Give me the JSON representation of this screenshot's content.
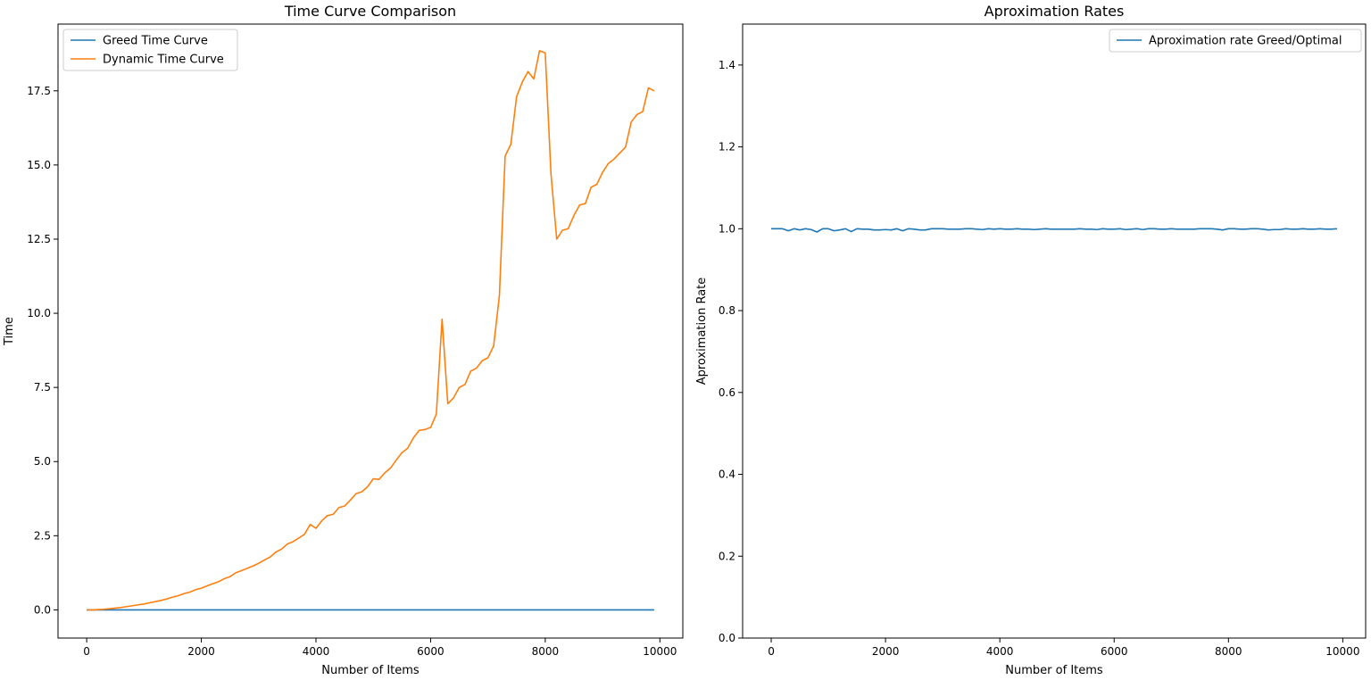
{
  "chart_data": [
    {
      "type": "line",
      "title": "Time Curve Comparison",
      "xlabel": "Number of Items",
      "ylabel": "Time",
      "xlim": [
        -500,
        10400
      ],
      "ylim": [
        -0.95,
        19.75
      ],
      "xticks": [
        0,
        2000,
        4000,
        6000,
        8000,
        10000
      ],
      "xtick_labels": [
        "0",
        "2000",
        "4000",
        "6000",
        "8000",
        "10000"
      ],
      "yticks": [
        0,
        2.5,
        5,
        7.5,
        10,
        12.5,
        15,
        17.5
      ],
      "ytick_labels": [
        "0.0",
        "2.5",
        "5.0",
        "7.5",
        "10.0",
        "12.5",
        "15.0",
        "17.5"
      ],
      "grid": false,
      "legend_position": "top-left",
      "x": [
        0,
        100,
        200,
        300,
        400,
        500,
        600,
        700,
        800,
        900,
        1000,
        1100,
        1200,
        1300,
        1400,
        1500,
        1600,
        1700,
        1800,
        1900,
        2000,
        2100,
        2200,
        2300,
        2400,
        2500,
        2600,
        2700,
        2800,
        2900,
        3000,
        3100,
        3200,
        3300,
        3400,
        3500,
        3600,
        3700,
        3800,
        3900,
        4000,
        4100,
        4200,
        4300,
        4400,
        4500,
        4600,
        4700,
        4800,
        4900,
        5000,
        5100,
        5200,
        5300,
        5400,
        5500,
        5600,
        5700,
        5800,
        5900,
        6000,
        6100,
        6200,
        6300,
        6400,
        6500,
        6600,
        6700,
        6800,
        6900,
        7000,
        7100,
        7200,
        7300,
        7400,
        7500,
        7600,
        7700,
        7800,
        7900,
        8000,
        8100,
        8200,
        8300,
        8400,
        8500,
        8600,
        8700,
        8800,
        8900,
        9000,
        9100,
        9200,
        9300,
        9400,
        9500,
        9600,
        9700,
        9800,
        9900
      ],
      "series": [
        {
          "name": "Greed Time Curve",
          "color": "#1f77b4",
          "values": [
            0,
            0,
            0,
            0,
            0,
            0,
            0,
            0,
            0,
            0,
            0,
            0,
            0,
            0,
            0,
            0,
            0,
            0,
            0,
            0,
            0,
            0,
            0,
            0,
            0,
            0,
            0,
            0,
            0,
            0,
            0,
            0,
            0,
            0,
            0,
            0,
            0,
            0,
            0,
            0,
            0,
            0,
            0,
            0,
            0,
            0,
            0,
            0,
            0,
            0,
            0,
            0,
            0,
            0,
            0,
            0,
            0,
            0,
            0,
            0,
            0,
            0,
            0,
            0,
            0,
            0,
            0,
            0,
            0,
            0,
            0,
            0,
            0,
            0,
            0,
            0,
            0,
            0,
            0,
            0,
            0,
            0,
            0,
            0,
            0,
            0,
            0,
            0,
            0,
            0,
            0,
            0,
            0,
            0,
            0,
            0,
            0,
            0,
            0,
            0
          ]
        },
        {
          "name": "Dynamic Time Curve",
          "color": "#ff7f0e",
          "values": [
            0.0,
            0.0,
            0.01,
            0.02,
            0.04,
            0.06,
            0.08,
            0.11,
            0.14,
            0.17,
            0.2,
            0.24,
            0.28,
            0.32,
            0.37,
            0.43,
            0.48,
            0.55,
            0.6,
            0.68,
            0.73,
            0.81,
            0.88,
            0.95,
            1.05,
            1.12,
            1.25,
            1.32,
            1.4,
            1.48,
            1.57,
            1.68,
            1.78,
            1.95,
            2.05,
            2.22,
            2.3,
            2.42,
            2.55,
            2.88,
            2.75,
            3.0,
            3.18,
            3.22,
            3.45,
            3.5,
            3.7,
            3.92,
            3.98,
            4.15,
            4.42,
            4.4,
            4.62,
            4.78,
            5.05,
            5.3,
            5.45,
            5.8,
            6.05,
            6.08,
            6.15,
            6.6,
            9.8,
            6.95,
            7.15,
            7.5,
            7.6,
            8.05,
            8.15,
            8.4,
            8.5,
            8.9,
            10.6,
            15.3,
            15.7,
            17.3,
            17.8,
            18.15,
            17.9,
            18.85,
            18.78,
            14.7,
            12.5,
            12.8,
            12.85,
            13.3,
            13.65,
            13.7,
            14.25,
            14.35,
            14.75,
            15.05,
            15.2,
            15.4,
            15.6,
            16.45,
            16.7,
            16.8,
            17.6,
            17.5
          ]
        }
      ]
    },
    {
      "type": "line",
      "title": "Aproximation Rates",
      "xlabel": "Number of Items",
      "ylabel": "Aproximation Rate",
      "xlim": [
        -500,
        10400
      ],
      "ylim": [
        0.0,
        1.5
      ],
      "xticks": [
        0,
        2000,
        4000,
        6000,
        8000,
        10000
      ],
      "xtick_labels": [
        "0",
        "2000",
        "4000",
        "6000",
        "8000",
        "10000"
      ],
      "yticks": [
        0.0,
        0.2,
        0.4,
        0.6,
        0.8,
        1.0,
        1.2,
        1.4
      ],
      "ytick_labels": [
        "0.0",
        "0.2",
        "0.4",
        "0.6",
        "0.8",
        "1.0",
        "1.2",
        "1.4"
      ],
      "grid": false,
      "legend_position": "top-right",
      "x": [
        0,
        100,
        200,
        300,
        400,
        500,
        600,
        700,
        800,
        900,
        1000,
        1100,
        1200,
        1300,
        1400,
        1500,
        1600,
        1700,
        1800,
        1900,
        2000,
        2100,
        2200,
        2300,
        2400,
        2500,
        2600,
        2700,
        2800,
        2900,
        3000,
        3100,
        3200,
        3300,
        3400,
        3500,
        3600,
        3700,
        3800,
        3900,
        4000,
        4100,
        4200,
        4300,
        4400,
        4500,
        4600,
        4700,
        4800,
        4900,
        5000,
        5100,
        5200,
        5300,
        5400,
        5500,
        5600,
        5700,
        5800,
        5900,
        6000,
        6100,
        6200,
        6300,
        6400,
        6500,
        6600,
        6700,
        6800,
        6900,
        7000,
        7100,
        7200,
        7300,
        7400,
        7500,
        7600,
        7700,
        7800,
        7900,
        8000,
        8100,
        8200,
        8300,
        8400,
        8500,
        8600,
        8700,
        8800,
        8900,
        9000,
        9100,
        9200,
        9300,
        9400,
        9500,
        9600,
        9700,
        9800,
        9900
      ],
      "series": [
        {
          "name": "Aproximation rate Greed/Optimal",
          "color": "#1f77b4",
          "values": [
            1.0,
            1.0,
            1.0,
            0.995,
            1.0,
            0.997,
            1.0,
            0.998,
            0.992,
            1.0,
            1.0,
            0.995,
            0.997,
            1.0,
            0.993,
            1.0,
            0.999,
            0.999,
            0.997,
            0.997,
            0.998,
            0.997,
            1.0,
            0.995,
            1.0,
            0.999,
            0.997,
            0.997,
            1.0,
            1.0,
            1.0,
            0.999,
            0.999,
            0.999,
            1.0,
            1.0,
            0.999,
            0.998,
            1.0,
            0.999,
            1.0,
            0.999,
            0.999,
            1.0,
            0.999,
            0.999,
            0.998,
            0.999,
            1.0,
            0.999,
            0.999,
            0.999,
            0.999,
            0.999,
            1.0,
            0.999,
            0.999,
            0.998,
            1.0,
            0.999,
            0.999,
            1.0,
            0.998,
            0.999,
            1.0,
            0.998,
            1.0,
            1.0,
            0.999,
            0.999,
            1.0,
            0.999,
            0.999,
            0.999,
            0.999,
            1.0,
            1.0,
            1.0,
            0.999,
            0.997,
            1.0,
            1.0,
            0.999,
            0.999,
            1.0,
            1.0,
            0.999,
            0.997,
            0.998,
            0.998,
            1.0,
            0.999,
            0.999,
            1.0,
            0.999,
            0.999,
            1.0,
            0.999,
            0.999,
            1.0
          ]
        }
      ]
    }
  ]
}
